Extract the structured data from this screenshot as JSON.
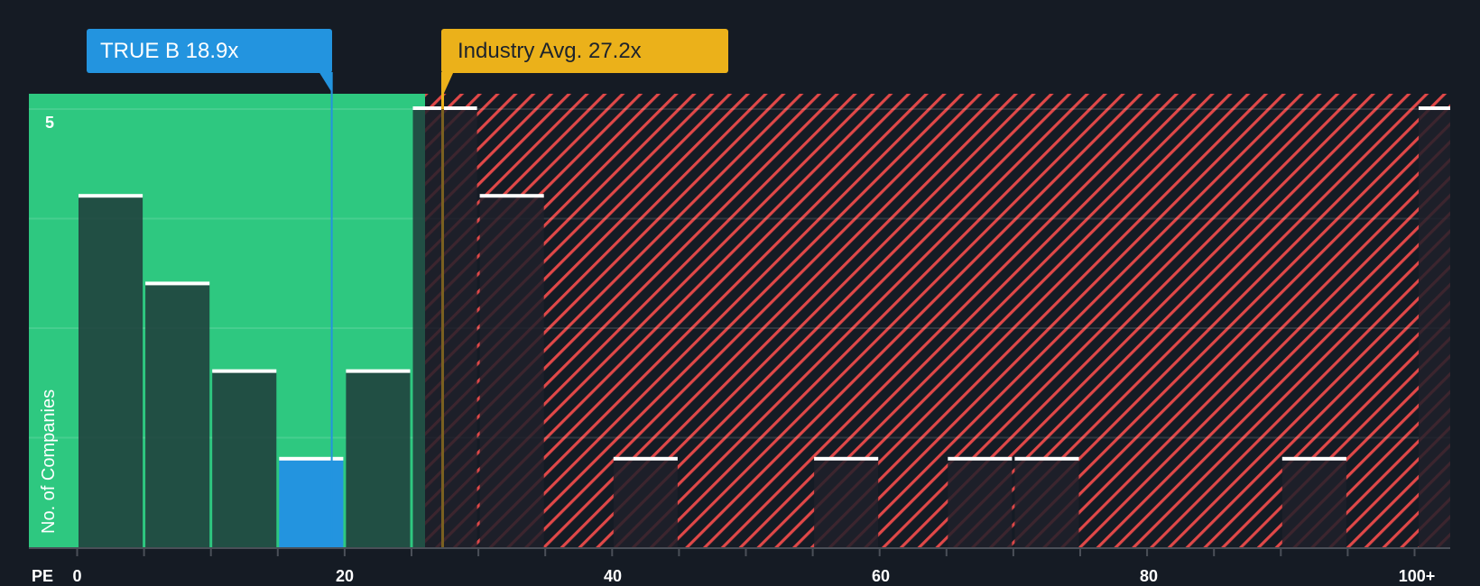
{
  "chart_data": {
    "type": "bar",
    "title": "",
    "xlabel": "PE",
    "ylabel": "No. of Companies",
    "x_tick_labels": [
      "0",
      "20",
      "40",
      "60",
      "80",
      "100+"
    ],
    "y_tick_labels": [
      "5"
    ],
    "ylim": [
      0,
      5
    ],
    "xlim": [
      -3.5,
      102.5
    ],
    "bin_width": 5,
    "grid": true,
    "bins": [
      {
        "range": "0-5",
        "x0": 0,
        "x1": 5,
        "value": 4,
        "highlight": false
      },
      {
        "range": "5-10",
        "x0": 5,
        "x1": 10,
        "value": 3,
        "highlight": false
      },
      {
        "range": "10-15",
        "x0": 10,
        "x1": 15,
        "value": 2,
        "highlight": false
      },
      {
        "range": "15-20",
        "x0": 15,
        "x1": 20,
        "value": 1,
        "highlight": true
      },
      {
        "range": "20-25",
        "x0": 20,
        "x1": 25,
        "value": 2,
        "highlight": false
      },
      {
        "range": "25-30",
        "x0": 25,
        "x1": 30,
        "value": 5,
        "highlight": false
      },
      {
        "range": "30-35",
        "x0": 30,
        "x1": 35,
        "value": 4,
        "highlight": false
      },
      {
        "range": "40-45",
        "x0": 40,
        "x1": 45,
        "value": 1,
        "highlight": false
      },
      {
        "range": "55-60",
        "x0": 55,
        "x1": 60,
        "value": 1,
        "highlight": false
      },
      {
        "range": "65-70",
        "x0": 65,
        "x1": 70,
        "value": 1,
        "highlight": false
      },
      {
        "range": "70-75",
        "x0": 70,
        "x1": 75,
        "value": 1,
        "highlight": false
      },
      {
        "range": "90-95",
        "x0": 90,
        "x1": 95,
        "value": 1,
        "highlight": false
      },
      {
        "range": "100+",
        "x0": 100,
        "x1": 102.5,
        "value": 5,
        "highlight": false
      }
    ],
    "markers": [
      {
        "name": "TRUE B",
        "value": 18.9,
        "label": "TRUE B 18.9x",
        "color": "#2394df"
      },
      {
        "name": "Industry Avg.",
        "value": 27.2,
        "label": "Industry Avg. 27.2x",
        "color": "#ebb11a"
      }
    ],
    "regions": [
      {
        "name": "undervalued",
        "from": -3.5,
        "to": 26.2,
        "color": "#2ec880"
      },
      {
        "name": "overvalued",
        "from": 26.2,
        "to": 102.5,
        "color": "#e04848",
        "pattern": "diagonal-hatch"
      }
    ]
  },
  "labels": {
    "company_callout": "TRUE B 18.9x",
    "industry_callout": "Industry Avg. 27.2x",
    "y_axis_title": "No. of Companies",
    "x_axis_title": "PE",
    "y_top_tick": "5",
    "x_ticks": [
      "0",
      "20",
      "40",
      "60",
      "80",
      "100+"
    ]
  },
  "colors": {
    "background": "#151b24",
    "green_region": "#2ec880",
    "bar_dark": "#1f4a3f",
    "bar_red_region": "#1e2029",
    "highlight_bar": "#2394df",
    "hatch": "#e04848",
    "industry_line": "#ebb11a",
    "company_line": "#2394df"
  }
}
